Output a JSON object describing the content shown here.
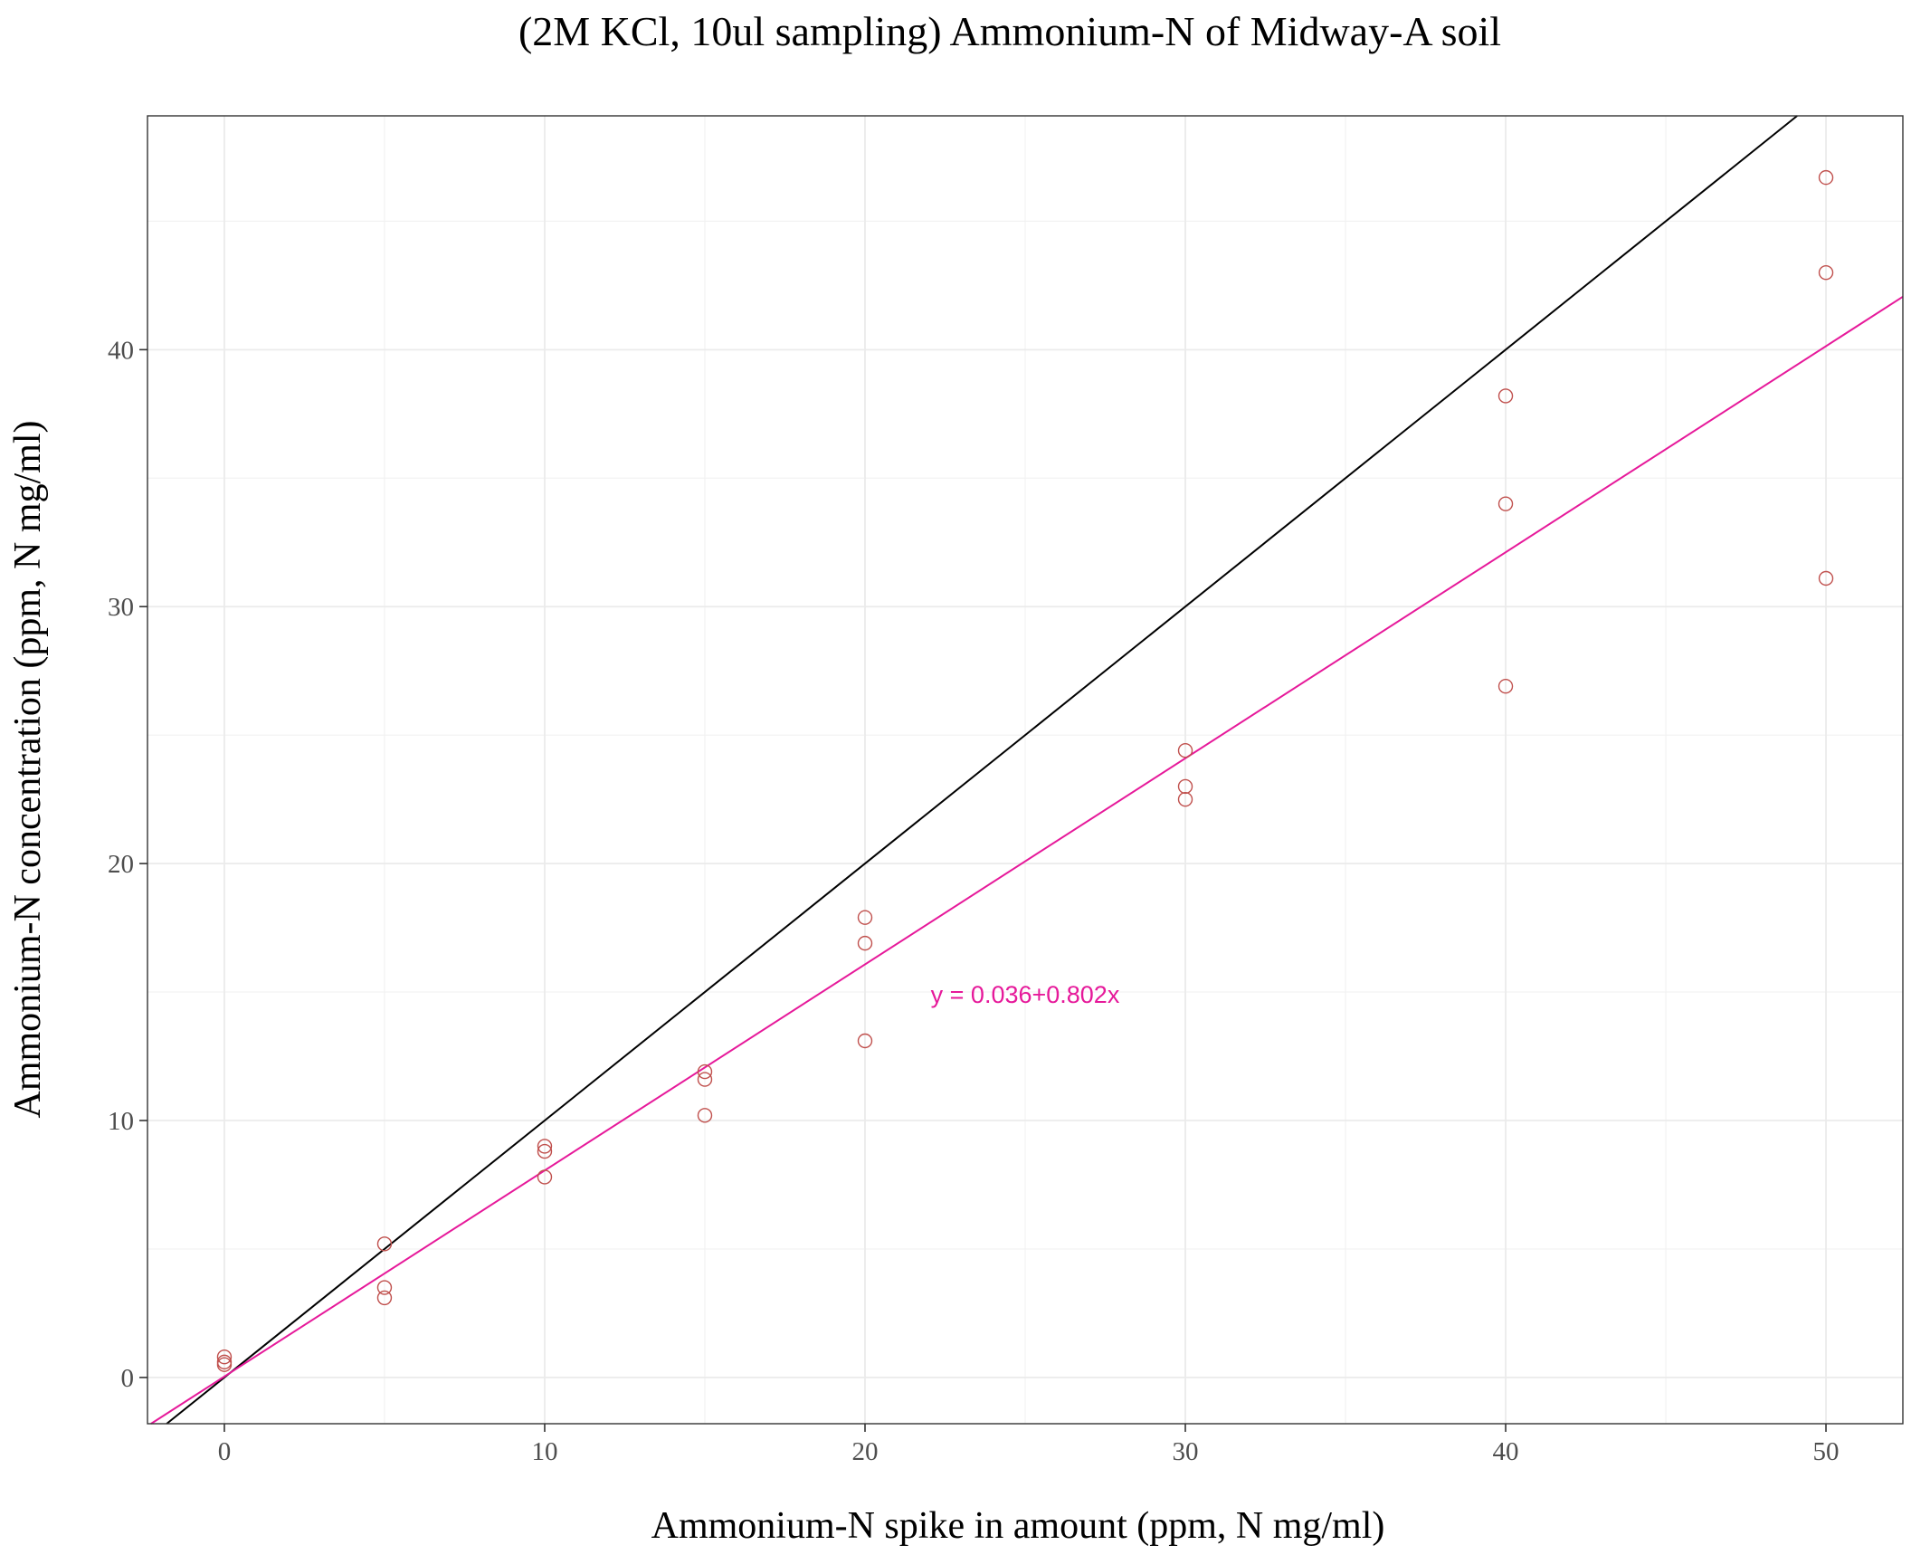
{
  "chart_data": {
    "type": "scatter",
    "title": "(2M KCl, 10ul sampling) Ammonium-N of Midway-A soil",
    "xlabel": "Ammonium-N spike in amount (ppm, N mg/ml)",
    "ylabel": "Ammonium-N concentration (ppm, N mg/ml)",
    "xlim": [
      -2.4,
      52.4
    ],
    "ylim": [
      -1.8,
      49.1
    ],
    "x_ticks": [
      0,
      10,
      20,
      30,
      40,
      50
    ],
    "y_ticks": [
      0,
      10,
      20,
      30,
      40
    ],
    "x_tick_labels": [
      "0",
      "10",
      "20",
      "30",
      "40",
      "50"
    ],
    "y_tick_labels": [
      "0",
      "10",
      "20",
      "30",
      "40"
    ],
    "grid": true,
    "points": [
      {
        "x": 0,
        "y": 0.5
      },
      {
        "x": 0,
        "y": 0.6
      },
      {
        "x": 0,
        "y": 0.8
      },
      {
        "x": 5,
        "y": 3.1
      },
      {
        "x": 5,
        "y": 3.5
      },
      {
        "x": 5,
        "y": 5.2
      },
      {
        "x": 10,
        "y": 7.8
      },
      {
        "x": 10,
        "y": 8.8
      },
      {
        "x": 10,
        "y": 9.0
      },
      {
        "x": 15,
        "y": 10.2
      },
      {
        "x": 15,
        "y": 11.6
      },
      {
        "x": 15,
        "y": 11.9
      },
      {
        "x": 20,
        "y": 13.1
      },
      {
        "x": 20,
        "y": 16.9
      },
      {
        "x": 20,
        "y": 17.9
      },
      {
        "x": 30,
        "y": 22.5
      },
      {
        "x": 30,
        "y": 23.0
      },
      {
        "x": 30,
        "y": 24.4
      },
      {
        "x": 40,
        "y": 26.9
      },
      {
        "x": 40,
        "y": 34.0
      },
      {
        "x": 40,
        "y": 38.2
      },
      {
        "x": 50,
        "y": 31.1
      },
      {
        "x": 50,
        "y": 43.0
      },
      {
        "x": 50,
        "y": 46.7
      }
    ],
    "lines": [
      {
        "intercept": 0,
        "slope": 1,
        "color": "#000000"
      },
      {
        "intercept": 0.036,
        "slope": 0.802,
        "color": "#e6199a"
      }
    ],
    "annotation": {
      "text": "y = 0.036+0.802x",
      "x": 25,
      "y": 14.9,
      "color": "#e6199a"
    },
    "point_color": "#c0504d"
  }
}
